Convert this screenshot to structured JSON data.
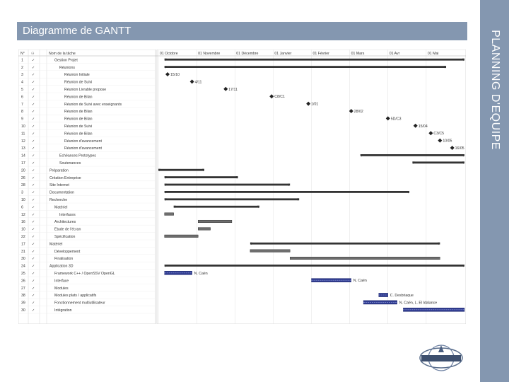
{
  "slide": {
    "title": "Diagramme de GANTT",
    "side_label": "PLANNING D'EQUIPE"
  },
  "gantt": {
    "headers": [
      "N°",
      "⚇",
      "Nom de la tâche"
    ],
    "timeline": [
      "01 Octobre",
      "01 Novembre",
      "01 Décembre",
      "01 Janvier",
      "01 Février",
      "01 Mars",
      "01 Avr",
      "01 Mai"
    ],
    "tasks": [
      {
        "id": "1",
        "name": "Gestion Projet",
        "indent": 1
      },
      {
        "id": "2",
        "name": "Réunions",
        "indent": 2
      },
      {
        "id": "3",
        "name": "Réunion Initiale",
        "indent": 3
      },
      {
        "id": "4",
        "name": "Réunion de Suivi",
        "indent": 3
      },
      {
        "id": "5",
        "name": "Réunion Livrable propose",
        "indent": 3
      },
      {
        "id": "6",
        "name": "Réunion de Bilan",
        "indent": 3
      },
      {
        "id": "7",
        "name": "Réunion de Suivi avec enseignants",
        "indent": 3
      },
      {
        "id": "8",
        "name": "Réunion de Bilan",
        "indent": 3
      },
      {
        "id": "9",
        "name": "Réunion de Bilan",
        "indent": 3
      },
      {
        "id": "10",
        "name": "Réunion de Suivi",
        "indent": 3
      },
      {
        "id": "11",
        "name": "Réunion de Bilan",
        "indent": 3
      },
      {
        "id": "12",
        "name": "Réunion d'avancement",
        "indent": 3
      },
      {
        "id": "13",
        "name": "Réunion d'avancement",
        "indent": 3
      },
      {
        "id": "14",
        "name": "Echéances Prototypes",
        "indent": 2
      },
      {
        "id": "17",
        "name": "Soutenances",
        "indent": 2
      },
      {
        "id": "20",
        "name": "Préparation",
        "indent": 0
      },
      {
        "id": "26",
        "name": "Création Entreprise",
        "indent": 0
      },
      {
        "id": "28",
        "name": "Site Internet",
        "indent": 0
      },
      {
        "id": "3",
        "name": "Documentation",
        "indent": 0
      },
      {
        "id": "10",
        "name": "Recherche",
        "indent": 0
      },
      {
        "id": "6",
        "name": "Matériel",
        "indent": 1
      },
      {
        "id": "12",
        "name": "Interfaces",
        "indent": 2
      },
      {
        "id": "16",
        "name": "Architectures",
        "indent": 1
      },
      {
        "id": "10",
        "name": "Etude de l'écran",
        "indent": 1
      },
      {
        "id": "22",
        "name": "Spécification",
        "indent": 1
      },
      {
        "id": "17",
        "name": "Matériel",
        "indent": 0
      },
      {
        "id": "31",
        "name": "Développement",
        "indent": 1
      },
      {
        "id": "30",
        "name": "Finalisation",
        "indent": 1
      },
      {
        "id": "24",
        "name": "Application 3D",
        "indent": 0
      },
      {
        "id": "25",
        "name": "Framework C++ / OpenSSV OpenGL",
        "indent": 1
      },
      {
        "id": "26",
        "name": "Interface",
        "indent": 1
      },
      {
        "id": "27",
        "name": "Modules",
        "indent": 1
      },
      {
        "id": "38",
        "name": "Modules plats / applicatifs",
        "indent": 1
      },
      {
        "id": "39",
        "name": "Fonctionnement multiutilisateur",
        "indent": 1
      },
      {
        "id": "30",
        "name": "Intégration",
        "indent": 1
      }
    ],
    "labels": {
      "m1": "15/10",
      "m2": "4/11",
      "m3": "17/11",
      "m4": "C8/C1",
      "m5": "1/01",
      "m6": "28/02",
      "m7": "5D/C3",
      "m8": "15/04",
      "m9": "C3/C5",
      "m10": "10/05",
      "m11": "16/05",
      "r1": "N. Caën",
      "r2": "N. Caën",
      "r3": "C. Desbriaque",
      "r4": "N. Caën, L. El Idalance"
    }
  }
}
